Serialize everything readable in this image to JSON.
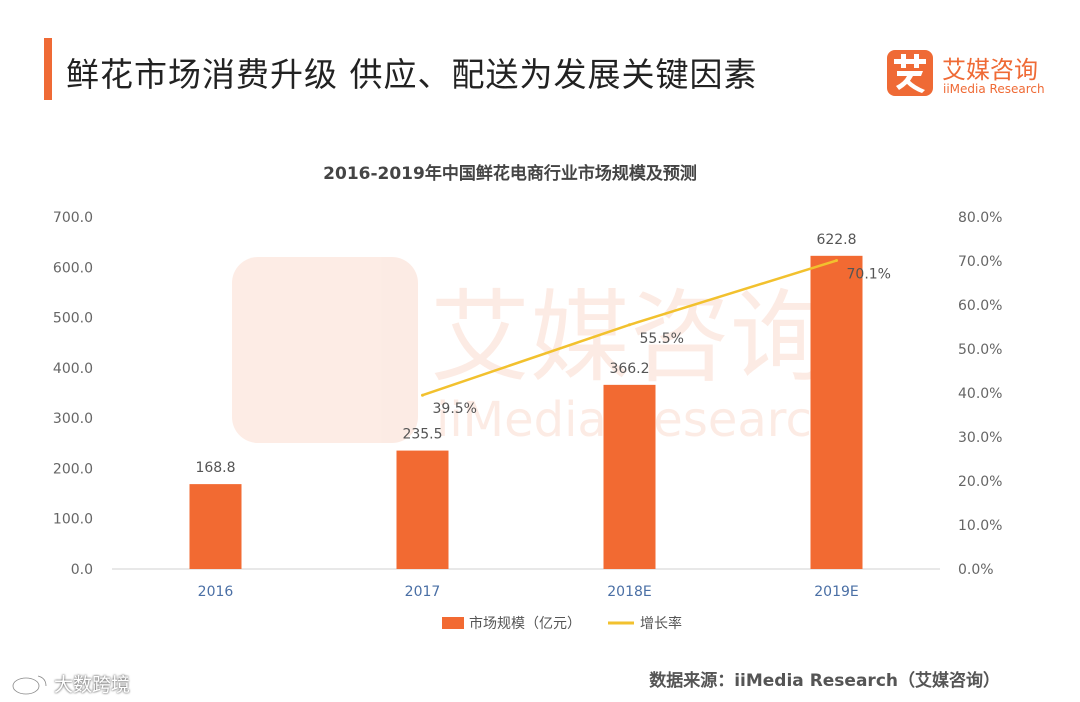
{
  "header": {
    "title": "鲜花市场消费升级  供应、配送为发展关键因素",
    "logo_name": "艾媒咨询",
    "logo_sub": "iiMedia Research"
  },
  "chart_data": {
    "type": "bar",
    "title": "2016-2019年中国鲜花电商行业市场规模及预测",
    "categories": [
      "2016",
      "2017",
      "2018E",
      "2019E"
    ],
    "series": [
      {
        "name": "市场规模（亿元）",
        "chart_type": "bar",
        "axis": "left",
        "color": "#f26a32",
        "values": [
          168.8,
          235.5,
          366.2,
          622.8
        ],
        "labels": [
          "168.8",
          "235.5",
          "366.2",
          "622.8"
        ]
      },
      {
        "name": "增长率",
        "chart_type": "line",
        "axis": "right",
        "color": "#f2c12e",
        "values": [
          null,
          39.5,
          55.5,
          70.1
        ],
        "labels": [
          "",
          "39.5%",
          "55.5%",
          "70.1%"
        ]
      }
    ],
    "ylim": [
      0,
      700
    ],
    "yticks": [
      "0.0",
      "100.0",
      "200.0",
      "300.0",
      "400.0",
      "500.0",
      "600.0",
      "700.0"
    ],
    "y2lim": [
      0,
      80
    ],
    "y2ticks": [
      "0.0%",
      "10.0%",
      "20.0%",
      "30.0%",
      "40.0%",
      "50.0%",
      "60.0%",
      "70.0%",
      "80.0%"
    ],
    "legend_position": "bottom",
    "grid": false,
    "watermark": {
      "logo_name": "艾媒咨询",
      "logo_sub": "iiMedia Research"
    }
  },
  "footer": {
    "source": "数据来源：iiMedia Research（艾媒咨询）",
    "weibo": "大数跨境"
  },
  "colors": {
    "accent": "#ef6a35",
    "bar": "#f26a32",
    "line": "#f2c12e"
  }
}
